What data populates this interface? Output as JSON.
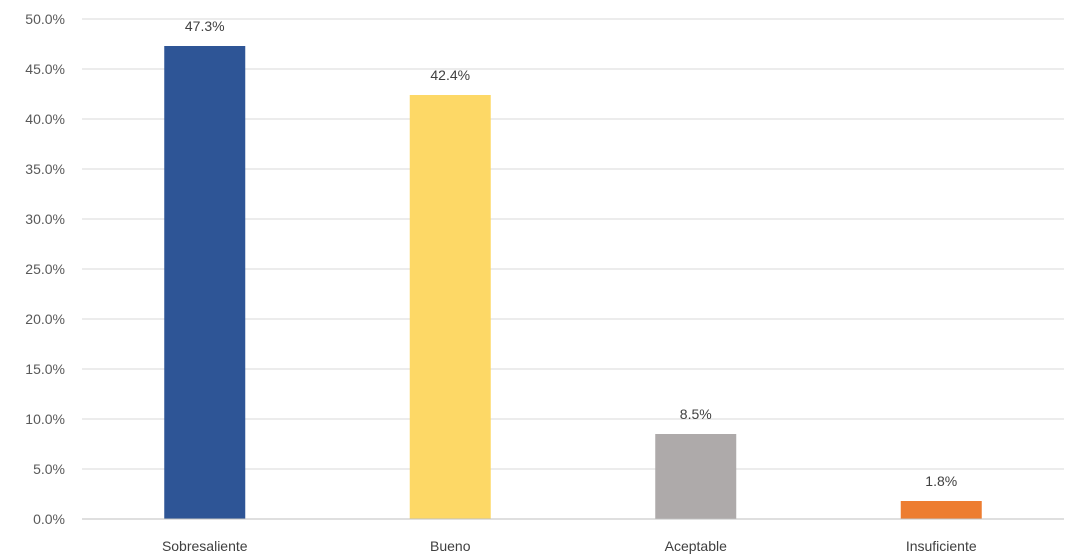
{
  "chart_data": {
    "type": "bar",
    "categories": [
      "Sobresaliente",
      "Bueno",
      "Aceptable",
      "Insuficiente"
    ],
    "values": [
      47.3,
      42.4,
      8.5,
      1.8
    ],
    "data_labels": [
      "47.3%",
      "42.4%",
      "8.5%",
      "1.8%"
    ],
    "colors": [
      "#2e5596",
      "#fdd866",
      "#aeaaaa",
      "#ed7d31"
    ],
    "title": "",
    "xlabel": "",
    "ylabel": "",
    "ylim": [
      0,
      50
    ],
    "y_ticks": [
      0,
      5,
      10,
      15,
      20,
      25,
      30,
      35,
      40,
      45,
      50
    ],
    "y_tick_labels": [
      "0.0%",
      "5.0%",
      "10.0%",
      "15.0%",
      "20.0%",
      "25.0%",
      "30.0%",
      "35.0%",
      "40.0%",
      "45.0%",
      "50.0%"
    ],
    "grid": true,
    "legend": "none"
  }
}
